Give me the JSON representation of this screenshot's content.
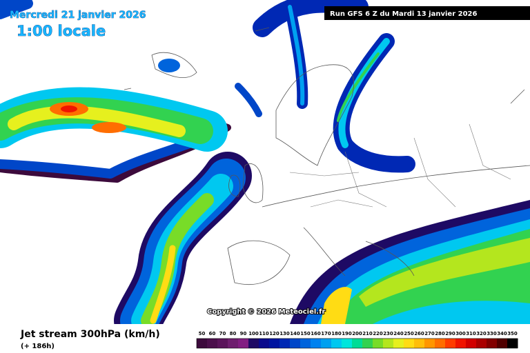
{
  "header": {
    "date": "Mercredi 21 janvier 2026",
    "time": "1:00 locale",
    "run": "Run GFS 6 Z du Mardi 13 janvier 2026"
  },
  "copyright": "Copyright © 2026 Meteociel.fr",
  "footer": {
    "title": "Jet stream 300hPa (km/h)",
    "lead": "(+ 186h)"
  },
  "legend": {
    "items": [
      {
        "label": 50,
        "color": "#3c0a3c"
      },
      {
        "label": 60,
        "color": "#4b0f4b"
      },
      {
        "label": 70,
        "color": "#5a145a"
      },
      {
        "label": 80,
        "color": "#6e1e6e"
      },
      {
        "label": 90,
        "color": "#821e82"
      },
      {
        "label": 100,
        "color": "#1e0a64"
      },
      {
        "label": 110,
        "color": "#0a0a8c"
      },
      {
        "label": 120,
        "color": "#0014a0"
      },
      {
        "label": 130,
        "color": "#0028b4"
      },
      {
        "label": 140,
        "color": "#0046c8"
      },
      {
        "label": 150,
        "color": "#0064dc"
      },
      {
        "label": 160,
        "color": "#0082f0"
      },
      {
        "label": 170,
        "color": "#00a0f0"
      },
      {
        "label": 180,
        "color": "#00c8f0"
      },
      {
        "label": 190,
        "color": "#00e6dc"
      },
      {
        "label": 200,
        "color": "#00dc96"
      },
      {
        "label": 210,
        "color": "#32d250"
      },
      {
        "label": 220,
        "color": "#78dc28"
      },
      {
        "label": 230,
        "color": "#b4e61e"
      },
      {
        "label": 240,
        "color": "#e6f01e"
      },
      {
        "label": 250,
        "color": "#ffdc14"
      },
      {
        "label": 260,
        "color": "#ffbe0a"
      },
      {
        "label": 270,
        "color": "#ff9600"
      },
      {
        "label": 280,
        "color": "#ff6e00"
      },
      {
        "label": 290,
        "color": "#ff3c00"
      },
      {
        "label": 300,
        "color": "#f01400"
      },
      {
        "label": 310,
        "color": "#d20000"
      },
      {
        "label": 320,
        "color": "#aa0000"
      },
      {
        "label": 330,
        "color": "#820000"
      },
      {
        "label": 340,
        "color": "#500000"
      },
      {
        "label": 350,
        "color": "#000000"
      }
    ]
  }
}
